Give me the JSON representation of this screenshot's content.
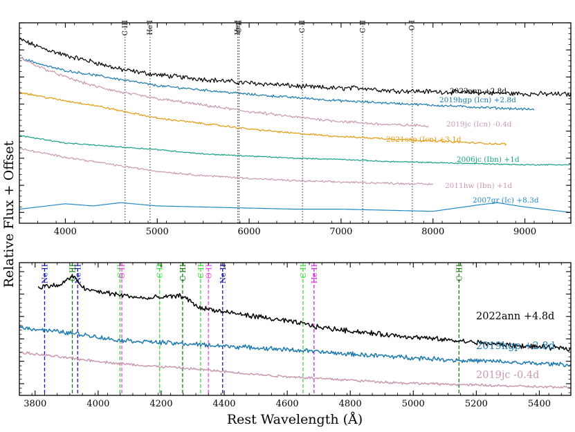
{
  "figure": {
    "ylabel": "Relative Flux + Offset",
    "xlabel": "Rest Wavelength (Å)"
  },
  "colors": {
    "black": "#000000",
    "blue": "#1a7ab0",
    "pink": "#c999b0",
    "orange": "#e39a0f",
    "teal": "#16a085",
    "sky": "#1f87c4",
    "ne": "#1414b4",
    "c3": "#137813",
    "c2": "#2fe02f",
    "o2": "#ee44ee",
    "he2": "#d826d8"
  },
  "chart_data": [
    {
      "type": "line",
      "title": "",
      "xlabel": "",
      "ylabel": "Relative Flux + Offset",
      "xlim": [
        3500,
        9500
      ],
      "xticks": [
        4000,
        5000,
        6000,
        7000,
        8000,
        9000
      ],
      "lines": [
        {
          "label": "C III",
          "x": 4650
        },
        {
          "label": "He I",
          "x": 4922
        },
        {
          "label": "He I",
          "x": 5876
        },
        {
          "label": "C II",
          "x": 5890
        },
        {
          "label": "C II",
          "x": 6580
        },
        {
          "label": "C II",
          "x": 7236
        },
        {
          "label": "O I",
          "x": 7774
        }
      ],
      "series": [
        {
          "name": "2022ann +2.8d",
          "color": "#000000",
          "noise": 1.0,
          "x": [
            3500,
            3700,
            4000,
            4300,
            4600,
            5000,
            5500,
            5900,
            6300,
            6600,
            7000,
            7240,
            7500,
            8000,
            8500,
            9000,
            9500
          ],
          "y": [
            1.85,
            1.78,
            1.7,
            1.64,
            1.57,
            1.52,
            1.48,
            1.45,
            1.43,
            1.41,
            1.395,
            1.4,
            1.375,
            1.365,
            1.355,
            1.345,
            1.34
          ]
        },
        {
          "name": "2019hgp (Icn) +2.8d",
          "color": "#1a7ab0",
          "noise": 0.5,
          "x": [
            3500,
            3800,
            4000,
            4300,
            4650,
            5000,
            5500,
            6000,
            6500,
            7000,
            7500,
            8000,
            8500,
            9100
          ],
          "y": [
            1.68,
            1.6,
            1.56,
            1.52,
            1.47,
            1.42,
            1.38,
            1.34,
            1.31,
            1.28,
            1.26,
            1.24,
            1.22,
            1.2
          ]
        },
        {
          "name": "2019jc (Icn) -0.4d",
          "color": "#c999b0",
          "noise": 0.6,
          "x": [
            3500,
            3700,
            4000,
            4300,
            4600,
            5000,
            5500,
            6000,
            6500,
            7000,
            7500,
            7950
          ],
          "y": [
            1.68,
            1.6,
            1.5,
            1.42,
            1.36,
            1.3,
            1.24,
            1.18,
            1.13,
            1.09,
            1.06,
            1.05
          ]
        },
        {
          "name": "2021csp (Icn) +3.1d",
          "color": "#e39a0f",
          "noise": 0.4,
          "x": [
            3500,
            3800,
            4000,
            4300,
            4650,
            5000,
            5500,
            6000,
            6500,
            7000,
            7500,
            8000,
            8500,
            8800
          ],
          "y": [
            1.36,
            1.31,
            1.28,
            1.24,
            1.18,
            1.12,
            1.07,
            1.02,
            0.98,
            0.95,
            0.93,
            0.91,
            0.89,
            0.88
          ]
        },
        {
          "name": "2006jc (Ibn) +1d",
          "color": "#16a085",
          "noise": 0.25,
          "x": [
            3500,
            3800,
            4000,
            4500,
            5000,
            5500,
            6000,
            6500,
            7000,
            7500,
            8000,
            8500,
            9000,
            9500
          ],
          "y": [
            0.96,
            0.92,
            0.89,
            0.86,
            0.83,
            0.79,
            0.77,
            0.75,
            0.74,
            0.72,
            0.71,
            0.7,
            0.69,
            0.69
          ]
        },
        {
          "name": "2011hw (Ibn) +1d",
          "color": "#c999b0",
          "noise": 0.4,
          "x": [
            3500,
            3800,
            4000,
            4300,
            4600,
            5000,
            5500,
            5900,
            6300,
            6600,
            7000,
            7500,
            8000
          ],
          "y": [
            0.84,
            0.79,
            0.76,
            0.72,
            0.68,
            0.63,
            0.59,
            0.57,
            0.55,
            0.54,
            0.53,
            0.52,
            0.51
          ]
        },
        {
          "name": "2007gr (Ic) +8.3d",
          "color": "#1f87c4",
          "noise": 0.0,
          "x": [
            3500,
            3700,
            4000,
            4300,
            4600,
            5000,
            5500,
            6000,
            6500,
            7000,
            7500,
            8000,
            8500,
            8700,
            9000,
            9500
          ],
          "y": [
            0.28,
            0.3,
            0.33,
            0.31,
            0.34,
            0.31,
            0.3,
            0.29,
            0.28,
            0.28,
            0.27,
            0.26,
            0.32,
            0.34,
            0.3,
            0.25
          ]
        }
      ]
    },
    {
      "type": "line",
      "title": "",
      "xlabel": "Rest Wavelength (Å)",
      "ylabel": "Relative Flux + Offset",
      "xlim": [
        3750,
        5500
      ],
      "xticks": [
        3800,
        4000,
        4200,
        4400,
        4600,
        4800,
        5000,
        5200,
        5400
      ],
      "lines": [
        {
          "label": "Ne II",
          "x": 3830,
          "ion": "ne"
        },
        {
          "label": "C III",
          "x": 3918,
          "ion": "c3"
        },
        {
          "label": "Ne II",
          "x": 3935,
          "ion": "ne"
        },
        {
          "label": "C II",
          "x": 4069,
          "ion": "c2"
        },
        {
          "label": "O II",
          "x": 4075,
          "ion": "o2"
        },
        {
          "label": "C II",
          "x": 4195,
          "ion": "c2"
        },
        {
          "label": "C III",
          "x": 4268,
          "ion": "c3"
        },
        {
          "label": "C II",
          "x": 4325,
          "ion": "c2"
        },
        {
          "label": "O II",
          "x": 4350,
          "ion": "o2"
        },
        {
          "label": "Ne II",
          "x": 4395,
          "ion": "ne"
        },
        {
          "label": "C II",
          "x": 4650,
          "ion": "c2"
        },
        {
          "label": "He II",
          "x": 4685,
          "ion": "he2"
        },
        {
          "label": "C III",
          "x": 5145,
          "ion": "c3"
        }
      ],
      "series": [
        {
          "name": "2022ann +4.8d",
          "color": "#000000",
          "noise": 1.0,
          "x": [
            3810,
            3880,
            3918,
            3960,
            4050,
            4150,
            4268,
            4320,
            4400,
            4500,
            4650,
            4700,
            4800,
            4900,
            5000,
            5100,
            5200,
            5300,
            5400,
            5500
          ],
          "y": [
            1.83,
            1.85,
            1.95,
            1.8,
            1.75,
            1.7,
            1.73,
            1.6,
            1.55,
            1.5,
            1.42,
            1.38,
            1.34,
            1.3,
            1.27,
            1.24,
            1.21,
            1.18,
            1.16,
            1.14
          ]
        },
        {
          "name": "2019hgp +2.8d",
          "color": "#1a7ab0",
          "noise": 0.9,
          "x": [
            3750,
            3850,
            3950,
            4050,
            4150,
            4250,
            4350,
            4450,
            4550,
            4650,
            4750,
            4850,
            4950,
            5050,
            5150,
            5250,
            5350,
            5450,
            5500
          ],
          "y": [
            1.38,
            1.34,
            1.3,
            1.24,
            1.22,
            1.2,
            1.18,
            1.16,
            1.14,
            1.12,
            1.09,
            1.07,
            1.05,
            1.03,
            1.01,
            1.0,
            0.98,
            0.97,
            0.96
          ]
        },
        {
          "name": "2019jc -0.4d",
          "color": "#c999b0",
          "noise": 0.5,
          "x": [
            3750,
            3850,
            3950,
            4050,
            4150,
            4250,
            4350,
            4450,
            4550,
            4650,
            4750,
            4850,
            4950,
            5050,
            5150,
            5250,
            5350,
            5450,
            5500
          ],
          "y": [
            1.1,
            1.06,
            1.02,
            0.98,
            0.95,
            0.93,
            0.9,
            0.87,
            0.84,
            0.82,
            0.8,
            0.78,
            0.76,
            0.75,
            0.74,
            0.73,
            0.72,
            0.71,
            0.71
          ]
        }
      ]
    }
  ]
}
